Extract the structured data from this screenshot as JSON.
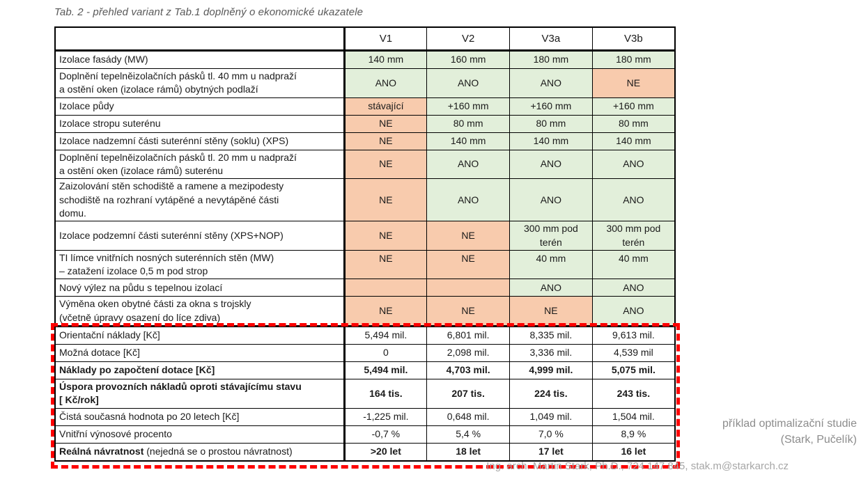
{
  "title": "Tab. 2 - přehled variant z Tab.1 doplněný o ekonomické ukazatele",
  "annotations": {
    "caption_line1": "příklad optimalizační studie",
    "caption_line2": "(Stark, Pučelík)",
    "footer": "Ing. arch. Martin Stark, Ph.D., 724 147 845, stak.m@starkarch.cz"
  },
  "colors": {
    "cell_green": "#e2efda",
    "cell_orange": "#f8cbad",
    "highlight_dash_red": "#fe0000",
    "grid_black": "#000000",
    "title_gray": "#595959",
    "caption_gray": "#8c8c8c",
    "footer_gray": "#a6a6a6"
  },
  "table": {
    "corner_label": "",
    "columns": [
      "V1",
      "V2",
      "V3a",
      "V3b"
    ],
    "rows": [
      {
        "section": "measures",
        "label": "Izolace fasády (MW)",
        "cells": [
          {
            "t": "140 mm",
            "bg": "g"
          },
          {
            "t": "160 mm",
            "bg": "g"
          },
          {
            "t": "180 mm",
            "bg": "g"
          },
          {
            "t": "180 mm",
            "bg": "g"
          }
        ]
      },
      {
        "section": "measures",
        "label": "Doplnění tepelněizolačních pásků tl. 40 mm u nadpraží\na ostění oken (izolace rámů) obytných podlaží",
        "cells": [
          {
            "t": "ANO",
            "bg": "g"
          },
          {
            "t": "ANO",
            "bg": "g"
          },
          {
            "t": "ANO",
            "bg": "g"
          },
          {
            "t": "NE",
            "bg": "o"
          }
        ]
      },
      {
        "section": "measures",
        "label": "Izolace půdy",
        "cells": [
          {
            "t": "stávající",
            "bg": "o"
          },
          {
            "t": "+160 mm",
            "bg": "g"
          },
          {
            "t": "+160 mm",
            "bg": "g"
          },
          {
            "t": "+160 mm",
            "bg": "g"
          }
        ]
      },
      {
        "section": "measures",
        "label": "Izolace stropu suterénu",
        "cells": [
          {
            "t": "NE",
            "bg": "o"
          },
          {
            "t": "80 mm",
            "bg": "g"
          },
          {
            "t": "80 mm",
            "bg": "g"
          },
          {
            "t": "80 mm",
            "bg": "g"
          }
        ]
      },
      {
        "section": "measures",
        "label": "Izolace nadzemní části suterénní stěny (soklu) (XPS)",
        "cells": [
          {
            "t": "NE",
            "bg": "o"
          },
          {
            "t": "140 mm",
            "bg": "g"
          },
          {
            "t": "140 mm",
            "bg": "g"
          },
          {
            "t": "140 mm",
            "bg": "g"
          }
        ]
      },
      {
        "section": "measures",
        "label": "Doplnění tepelněizolačních pásků tl. 20 mm u nadpraží\na ostění oken (izolace rámů) suterénu",
        "cells": [
          {
            "t": "NE",
            "bg": "o"
          },
          {
            "t": "ANO",
            "bg": "g"
          },
          {
            "t": "ANO",
            "bg": "g"
          },
          {
            "t": "ANO",
            "bg": "g"
          }
        ]
      },
      {
        "section": "measures",
        "label": "Zaizolování stěn schodiště a ramene a mezipodesty\nschodiště na rozhraní vytápěné a nevytápěné části\ndomu.",
        "cells": [
          {
            "t": "NE",
            "bg": "o"
          },
          {
            "t": "ANO",
            "bg": "g"
          },
          {
            "t": "ANO",
            "bg": "g"
          },
          {
            "t": "ANO",
            "bg": "g"
          }
        ]
      },
      {
        "section": "measures",
        "label": "Izolace podzemní části suterénní stěny (XPS+NOP)",
        "cells": [
          {
            "t": "NE",
            "bg": "o"
          },
          {
            "t": "NE",
            "bg": "o"
          },
          {
            "t": "300 mm pod\nterén",
            "bg": "g"
          },
          {
            "t": "300 mm pod\nterén",
            "bg": "g"
          }
        ]
      },
      {
        "section": "measures",
        "label": "TI límce vnitřních nosných suterénních stěn (MW)\n– zatažení izolace 0,5 m pod strop",
        "va_top": true,
        "cells": [
          {
            "t": "NE",
            "bg": "o"
          },
          {
            "t": "NE",
            "bg": "o"
          },
          {
            "t": "40 mm",
            "bg": "g"
          },
          {
            "t": "40 mm",
            "bg": "g"
          }
        ]
      },
      {
        "section": "measures",
        "label": "Nový výlez na půdu s tepelnou izolací",
        "cells": [
          {
            "t": "",
            "bg": "o"
          },
          {
            "t": "",
            "bg": "o"
          },
          {
            "t": "ANO",
            "bg": "g"
          },
          {
            "t": "ANO",
            "bg": "g"
          }
        ]
      },
      {
        "section": "measures",
        "label": "Výměna oken obytné části za okna s trojskly\n(včetně úpravy osazení do líce zdiva)",
        "cells": [
          {
            "t": "NE",
            "bg": "o"
          },
          {
            "t": "NE",
            "bg": "o"
          },
          {
            "t": "NE",
            "bg": "o"
          },
          {
            "t": "ANO",
            "bg": "g"
          }
        ]
      },
      {
        "section": "economic",
        "label": "Orientační náklady [Kč]",
        "cells": [
          {
            "t": "5,494 mil.",
            "bg": "w"
          },
          {
            "t": "6,801 mil.",
            "bg": "w"
          },
          {
            "t": "8,335 mil.",
            "bg": "w"
          },
          {
            "t": "9,613 mil.",
            "bg": "w"
          }
        ]
      },
      {
        "section": "economic",
        "label": "Možná dotace [Kč]",
        "cells": [
          {
            "t": "0",
            "bg": "w"
          },
          {
            "t": "2,098 mil.",
            "bg": "w"
          },
          {
            "t": "3,336 mil.",
            "bg": "w"
          },
          {
            "t": "4,539 mil",
            "bg": "w"
          }
        ]
      },
      {
        "section": "economic",
        "label": "Náklady po započtení dotace [Kč]",
        "bold": true,
        "values_bold": true,
        "cells": [
          {
            "t": "5,494 mil.",
            "bg": "w"
          },
          {
            "t": "4,703 mil.",
            "bg": "w"
          },
          {
            "t": "4,999 mil.",
            "bg": "w"
          },
          {
            "t": "5,075 mil.",
            "bg": "w"
          }
        ]
      },
      {
        "section": "economic",
        "label": "Úspora provozních nákladů oproti stávajícímu stavu\n[ Kč/rok]",
        "bold": true,
        "values_bold": true,
        "cells": [
          {
            "t": "164 tis.",
            "bg": "w"
          },
          {
            "t": "207 tis.",
            "bg": "w"
          },
          {
            "t": "224 tis.",
            "bg": "w"
          },
          {
            "t": "243 tis.",
            "bg": "w"
          }
        ]
      },
      {
        "section": "economic",
        "label": "Čistá současná hodnota po 20 letech [Kč]",
        "cells": [
          {
            "t": "-1,225 mil.",
            "bg": "w"
          },
          {
            "t": "0,648 mil.",
            "bg": "w"
          },
          {
            "t": "1,049 mil.",
            "bg": "w"
          },
          {
            "t": "1,504 mil.",
            "bg": "w"
          }
        ]
      },
      {
        "section": "economic",
        "label": "Vnitřní výnosové procento",
        "cells": [
          {
            "t": "-0,7 %",
            "bg": "w"
          },
          {
            "t": "5,4 %",
            "bg": "w"
          },
          {
            "t": "7,0 %",
            "bg": "w"
          },
          {
            "t": "8,9 %",
            "bg": "w"
          }
        ]
      },
      {
        "section": "economic",
        "label": "Reálná návratnost",
        "bold": true,
        "suffix": "(nejedná se o prostou návratnost)",
        "values_bold": true,
        "cells": [
          {
            "t": ">20 let",
            "bg": "w"
          },
          {
            "t": "18 let",
            "bg": "w"
          },
          {
            "t": "17 let",
            "bg": "w"
          },
          {
            "t": "16 let",
            "bg": "w"
          }
        ]
      }
    ]
  }
}
